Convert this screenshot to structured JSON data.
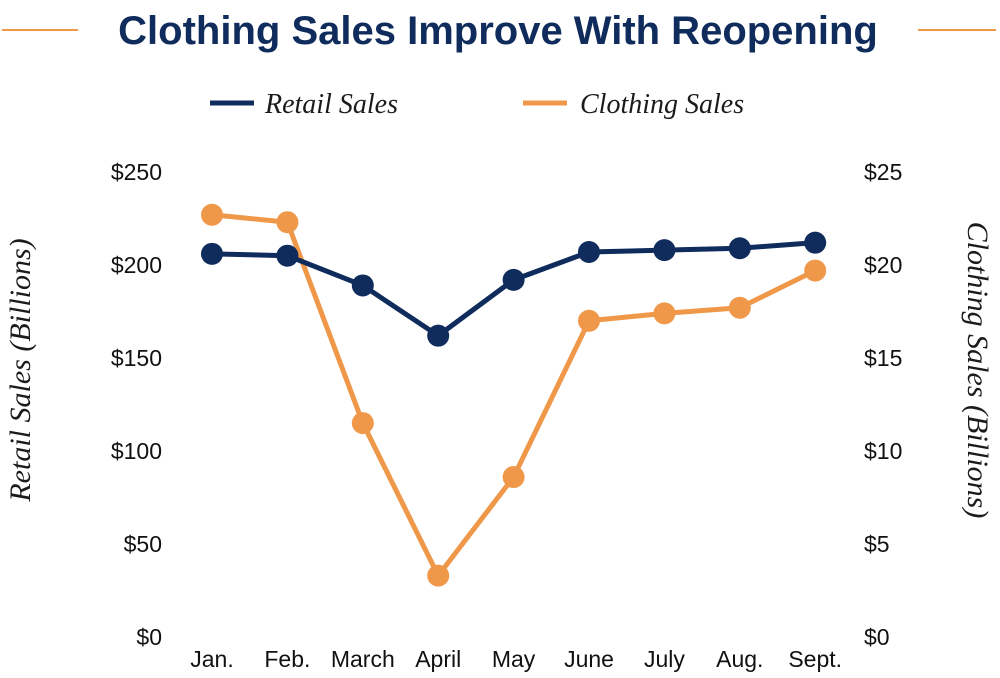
{
  "colors": {
    "retail": "#0f2c5c",
    "clothing": "#f0984a",
    "title": "#0f2c5c",
    "rule": "#f0984a"
  },
  "chart_data": {
    "type": "line",
    "title": "Clothing Sales Improve With Reopening",
    "categories": [
      "Jan.",
      "Feb.",
      "March",
      "April",
      "May",
      "June",
      "July",
      "Aug.",
      "Sept."
    ],
    "series": [
      {
        "name": "Retail Sales",
        "axis": "left",
        "values": [
          206,
          205,
          189,
          162,
          192,
          207,
          208,
          209,
          212
        ]
      },
      {
        "name": "Clothing Sales",
        "axis": "right",
        "values": [
          22.7,
          22.3,
          11.5,
          3.3,
          8.6,
          17.0,
          17.4,
          17.7,
          19.7
        ]
      }
    ],
    "y_left": {
      "label": "Retail Sales (Billions)",
      "range": [
        0,
        250
      ],
      "ticks": [
        "$0",
        "$50",
        "$100",
        "$150",
        "$200",
        "$250"
      ]
    },
    "y_right": {
      "label": "Clothing Sales (Billions)",
      "range": [
        0,
        25
      ],
      "ticks": [
        "$0",
        "$5",
        "$10",
        "$15",
        "$20",
        "$25"
      ]
    },
    "grid": false,
    "legend_position": "top-center"
  }
}
